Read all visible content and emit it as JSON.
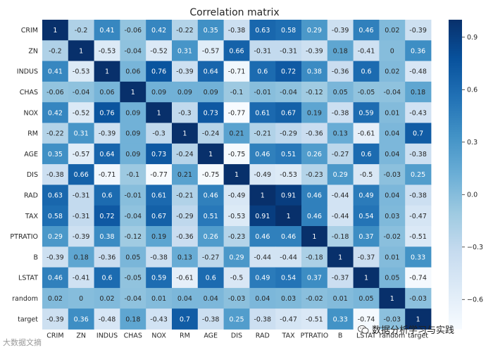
{
  "chart_data": {
    "type": "heatmap",
    "title": "Correlation matrix",
    "row_labels": [
      "CRIM",
      "ZN",
      "INDUS",
      "CHAS",
      "NOX",
      "RM",
      "AGE",
      "DIS",
      "RAD",
      "TAX",
      "PTRATIO",
      "B",
      "LSTAT",
      "random",
      "target"
    ],
    "col_labels": [
      "CRIM",
      "ZN",
      "INDUS",
      "CHAS",
      "NOX",
      "RM",
      "AGE",
      "DIS",
      "RAD",
      "TAX",
      "PTRATIO",
      "B",
      "LSTAT",
      "random",
      "target"
    ],
    "matrix": [
      [
        1,
        -0.2,
        0.41,
        -0.06,
        0.42,
        -0.22,
        0.35,
        -0.38,
        0.63,
        0.58,
        0.29,
        -0.39,
        0.46,
        0.02,
        -0.39
      ],
      [
        -0.2,
        1,
        -0.53,
        -0.04,
        -0.52,
        0.31,
        -0.57,
        0.66,
        -0.31,
        -0.31,
        -0.39,
        0.18,
        -0.41,
        0,
        0.36
      ],
      [
        0.41,
        -0.53,
        1,
        0.06,
        0.76,
        -0.39,
        0.64,
        -0.71,
        0.6,
        0.72,
        0.38,
        -0.36,
        0.6,
        0.02,
        -0.48
      ],
      [
        -0.06,
        -0.04,
        0.06,
        1,
        0.09,
        0.09,
        0.09,
        -0.1,
        -0.01,
        -0.04,
        -0.12,
        0.05,
        -0.05,
        -0.04,
        0.18
      ],
      [
        0.42,
        -0.52,
        0.76,
        0.09,
        1,
        -0.3,
        0.73,
        -0.77,
        0.61,
        0.67,
        0.19,
        -0.38,
        0.59,
        0.01,
        -0.43
      ],
      [
        -0.22,
        0.31,
        -0.39,
        0.09,
        -0.3,
        1,
        -0.24,
        0.21,
        -0.21,
        -0.29,
        -0.36,
        0.13,
        -0.61,
        0.04,
        0.7
      ],
      [
        0.35,
        -0.57,
        0.64,
        0.09,
        0.73,
        -0.24,
        1,
        -0.75,
        0.46,
        0.51,
        0.26,
        -0.27,
        0.6,
        0.04,
        -0.38
      ],
      [
        -0.38,
        0.66,
        -0.71,
        -0.1,
        -0.77,
        0.21,
        -0.75,
        1,
        -0.49,
        -0.53,
        -0.23,
        0.29,
        -0.5,
        -0.03,
        0.25
      ],
      [
        0.63,
        -0.31,
        0.6,
        -0.01,
        0.61,
        -0.21,
        0.46,
        -0.49,
        1,
        0.91,
        0.46,
        -0.44,
        0.49,
        0.04,
        -0.38
      ],
      [
        0.58,
        -0.31,
        0.72,
        -0.04,
        0.67,
        -0.29,
        0.51,
        -0.53,
        0.91,
        1,
        0.46,
        -0.44,
        0.54,
        0.03,
        -0.47
      ],
      [
        0.29,
        -0.39,
        0.38,
        -0.12,
        0.19,
        -0.36,
        0.26,
        -0.23,
        0.46,
        0.46,
        1,
        -0.18,
        0.37,
        -0.02,
        -0.51
      ],
      [
        -0.39,
        0.18,
        -0.36,
        0.05,
        -0.38,
        0.13,
        -0.27,
        0.29,
        -0.44,
        -0.44,
        -0.18,
        1,
        -0.37,
        0.01,
        0.33
      ],
      [
        0.46,
        -0.41,
        0.6,
        -0.05,
        0.59,
        -0.61,
        0.6,
        -0.5,
        0.49,
        0.54,
        0.37,
        -0.37,
        1,
        0.05,
        -0.74
      ],
      [
        0.02,
        0,
        0.02,
        -0.04,
        0.01,
        0.04,
        0.04,
        -0.03,
        0.04,
        0.03,
        -0.02,
        0.01,
        0.05,
        1,
        -0.03
      ],
      [
        -0.39,
        0.36,
        -0.48,
        0.18,
        -0.43,
        0.7,
        -0.38,
        0.25,
        -0.38,
        -0.47,
        -0.51,
        0.33,
        -0.74,
        -0.03,
        1
      ]
    ],
    "colorbar": {
      "ticks": [
        0.9,
        0.6,
        0.3,
        0.0,
        -0.3,
        -0.6
      ],
      "tick_labels": [
        "0.9",
        "0.6",
        "0.3",
        "0.0",
        "−0.3",
        "−0.6"
      ],
      "vmin": -0.77,
      "vmax": 1.0,
      "colormap": "Blues",
      "colors": [
        "#f7fbff",
        "#deebf7",
        "#c6dbef",
        "#9ecae1",
        "#6baed6",
        "#4292c6",
        "#2171b5",
        "#08519c",
        "#08306b"
      ]
    }
  },
  "watermarks": {
    "left_text": "大数据文摘",
    "right_text": "数据分析学习与实践"
  }
}
